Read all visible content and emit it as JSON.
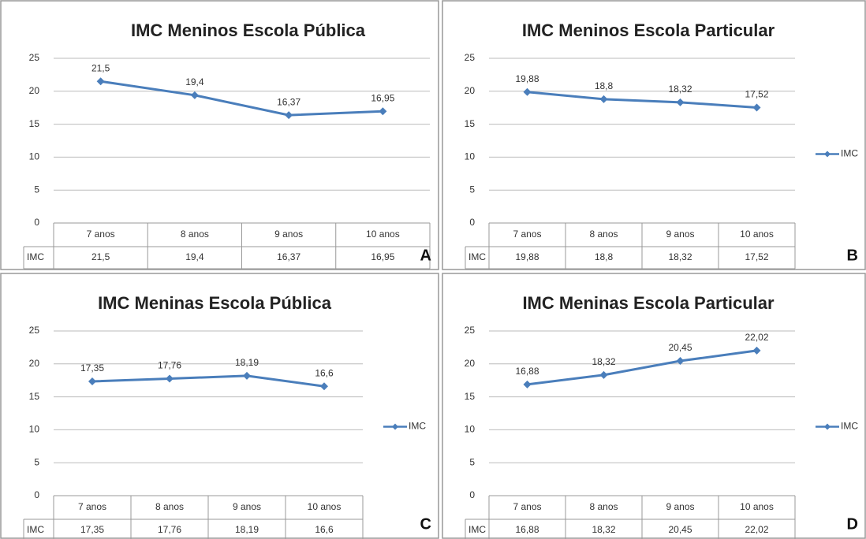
{
  "chart_data": [
    {
      "type": "line",
      "title": "IMC Meninos Escola Pública",
      "panel_label": "A",
      "categories": [
        "7 anos",
        "8 anos",
        "9 anos",
        "10 anos"
      ],
      "series": [
        {
          "name": "IMC",
          "color": "#4a7ebb",
          "values": [
            21.5,
            19.4,
            16.37,
            16.95
          ],
          "value_labels": [
            "21,5",
            "19,4",
            "16,37",
            "16,95"
          ]
        }
      ],
      "ylim": [
        0,
        25
      ],
      "yticks": [
        0,
        5,
        10,
        15,
        20,
        25
      ],
      "grid": true,
      "legend": false,
      "data_table": true
    },
    {
      "type": "line",
      "title": "IMC Meninos Escola Particular",
      "panel_label": "B",
      "categories": [
        "7 anos",
        "8 anos",
        "9 anos",
        "10 anos"
      ],
      "series": [
        {
          "name": "IMC",
          "color": "#4a7ebb",
          "values": [
            19.88,
            18.8,
            18.32,
            17.52
          ],
          "value_labels": [
            "19,88",
            "18,8",
            "18,32",
            "17,52"
          ]
        }
      ],
      "ylim": [
        0,
        25
      ],
      "yticks": [
        0,
        5,
        10,
        15,
        20,
        25
      ],
      "grid": true,
      "legend": "right",
      "data_table": true
    },
    {
      "type": "line",
      "title": "IMC Meninas Escola Pública",
      "panel_label": "C",
      "categories": [
        "7 anos",
        "8 anos",
        "9 anos",
        "10 anos"
      ],
      "series": [
        {
          "name": "IMC",
          "color": "#4a7ebb",
          "values": [
            17.35,
            17.76,
            18.19,
            16.6
          ],
          "value_labels": [
            "17,35",
            "17,76",
            "18,19",
            "16,6"
          ]
        }
      ],
      "ylim": [
        0,
        25
      ],
      "yticks": [
        0,
        5,
        10,
        15,
        20,
        25
      ],
      "grid": true,
      "legend": "right",
      "data_table": true
    },
    {
      "type": "line",
      "title": "IMC Meninas Escola Particular",
      "panel_label": "D",
      "categories": [
        "7 anos",
        "8 anos",
        "9 anos",
        "10 anos"
      ],
      "series": [
        {
          "name": "IMC",
          "color": "#4a7ebb",
          "values": [
            16.88,
            18.32,
            20.45,
            22.02
          ],
          "value_labels": [
            "16,88",
            "18,32",
            "20,45",
            "22,02"
          ]
        }
      ],
      "ylim": [
        0,
        25
      ],
      "yticks": [
        0,
        5,
        10,
        15,
        20,
        25
      ],
      "grid": true,
      "legend": "right",
      "data_table": true
    }
  ]
}
